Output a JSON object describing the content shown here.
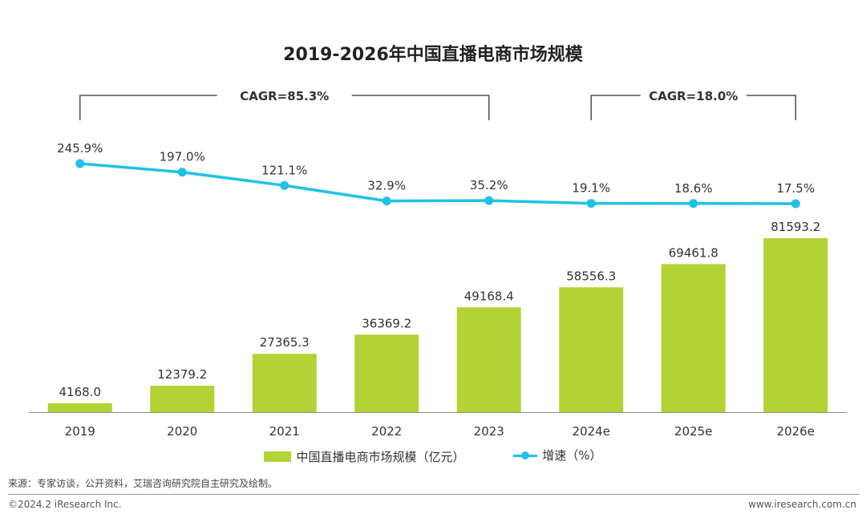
{
  "chart_data": {
    "type": "bar",
    "title": "2019-2026年中国直播电商市场规模",
    "categories": [
      "2019",
      "2020",
      "2021",
      "2022",
      "2023",
      "2024e",
      "2025e",
      "2026e"
    ],
    "series": [
      {
        "name": "中国直播电商市场规模（亿元）",
        "type": "bar",
        "values": [
          4168.0,
          12379.2,
          27365.3,
          36369.2,
          49168.4,
          58556.3,
          69461.8,
          81593.2
        ],
        "labels": [
          "4168.0",
          "12379.2",
          "27365.3",
          "36369.2",
          "49168.4",
          "58556.3",
          "69461.8",
          "81593.2"
        ],
        "color": "#b3d335"
      },
      {
        "name": "增速（%）",
        "type": "line",
        "values": [
          245.9,
          197.0,
          121.1,
          32.9,
          35.2,
          19.1,
          18.6,
          17.5
        ],
        "labels": [
          "245.9%",
          "197.0%",
          "121.1%",
          "32.9%",
          "35.2%",
          "19.1%",
          "18.6%",
          "17.5%"
        ],
        "color": "#1fc2e6"
      }
    ],
    "annotations": [
      {
        "text": "CAGR=85.3%",
        "from": "2019",
        "to": "2023"
      },
      {
        "text": "CAGR=18.0%",
        "from": "2024e",
        "to": "2026e"
      }
    ],
    "legend": "bottom",
    "grid": false
  },
  "footer": {
    "source": "来源：专家访谈，公开资料，艾瑞咨询研究院自主研究及绘制。",
    "copyright": "©2024.2 iResearch Inc.",
    "website": "www.iresearch.com.cn"
  }
}
